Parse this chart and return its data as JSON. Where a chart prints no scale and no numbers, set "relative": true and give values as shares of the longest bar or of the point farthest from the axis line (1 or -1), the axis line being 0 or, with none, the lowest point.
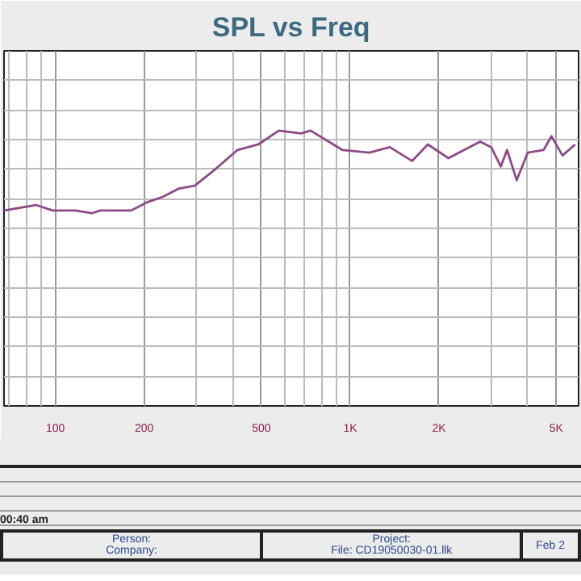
{
  "chart_data": {
    "type": "line",
    "title": "SPL vs Freq",
    "relative": true,
    "x": [
      67,
      86,
      98,
      117,
      133,
      142,
      181,
      205,
      232,
      263,
      297,
      349,
      415,
      488,
      573,
      681,
      734,
      940,
      1161,
      1363,
      1621,
      1834,
      2153,
      2759,
      3008,
      3241,
      3404,
      3670,
      4000,
      4529,
      4816,
      5248,
      5795
    ],
    "series": [
      {
        "color": "#8e4a86",
        "values": [
          0.71,
          0.73,
          0.71,
          0.71,
          0.7,
          0.71,
          0.71,
          0.74,
          0.76,
          0.79,
          0.8,
          0.86,
          0.93,
          0.95,
          1.0,
          0.99,
          1.0,
          0.93,
          0.92,
          0.94,
          0.89,
          0.95,
          0.9,
          0.96,
          0.94,
          0.87,
          0.93,
          0.82,
          0.92,
          0.93,
          0.98,
          0.91,
          0.95
        ]
      }
    ],
    "log": "x",
    "xlim": [
      67,
      5950
    ],
    "xticks": [
      100,
      200,
      500,
      {
        "value": 1000,
        "label": "1K"
      },
      {
        "value": 2000,
        "label": "2K"
      },
      {
        "value": 5000,
        "label": "5K"
      }
    ],
    "grid": true,
    "annotations": [
      "00:40 am",
      "Person:",
      "Company:",
      "Project:",
      "File: CD19050030-01.llk",
      "Feb 2"
    ]
  }
}
